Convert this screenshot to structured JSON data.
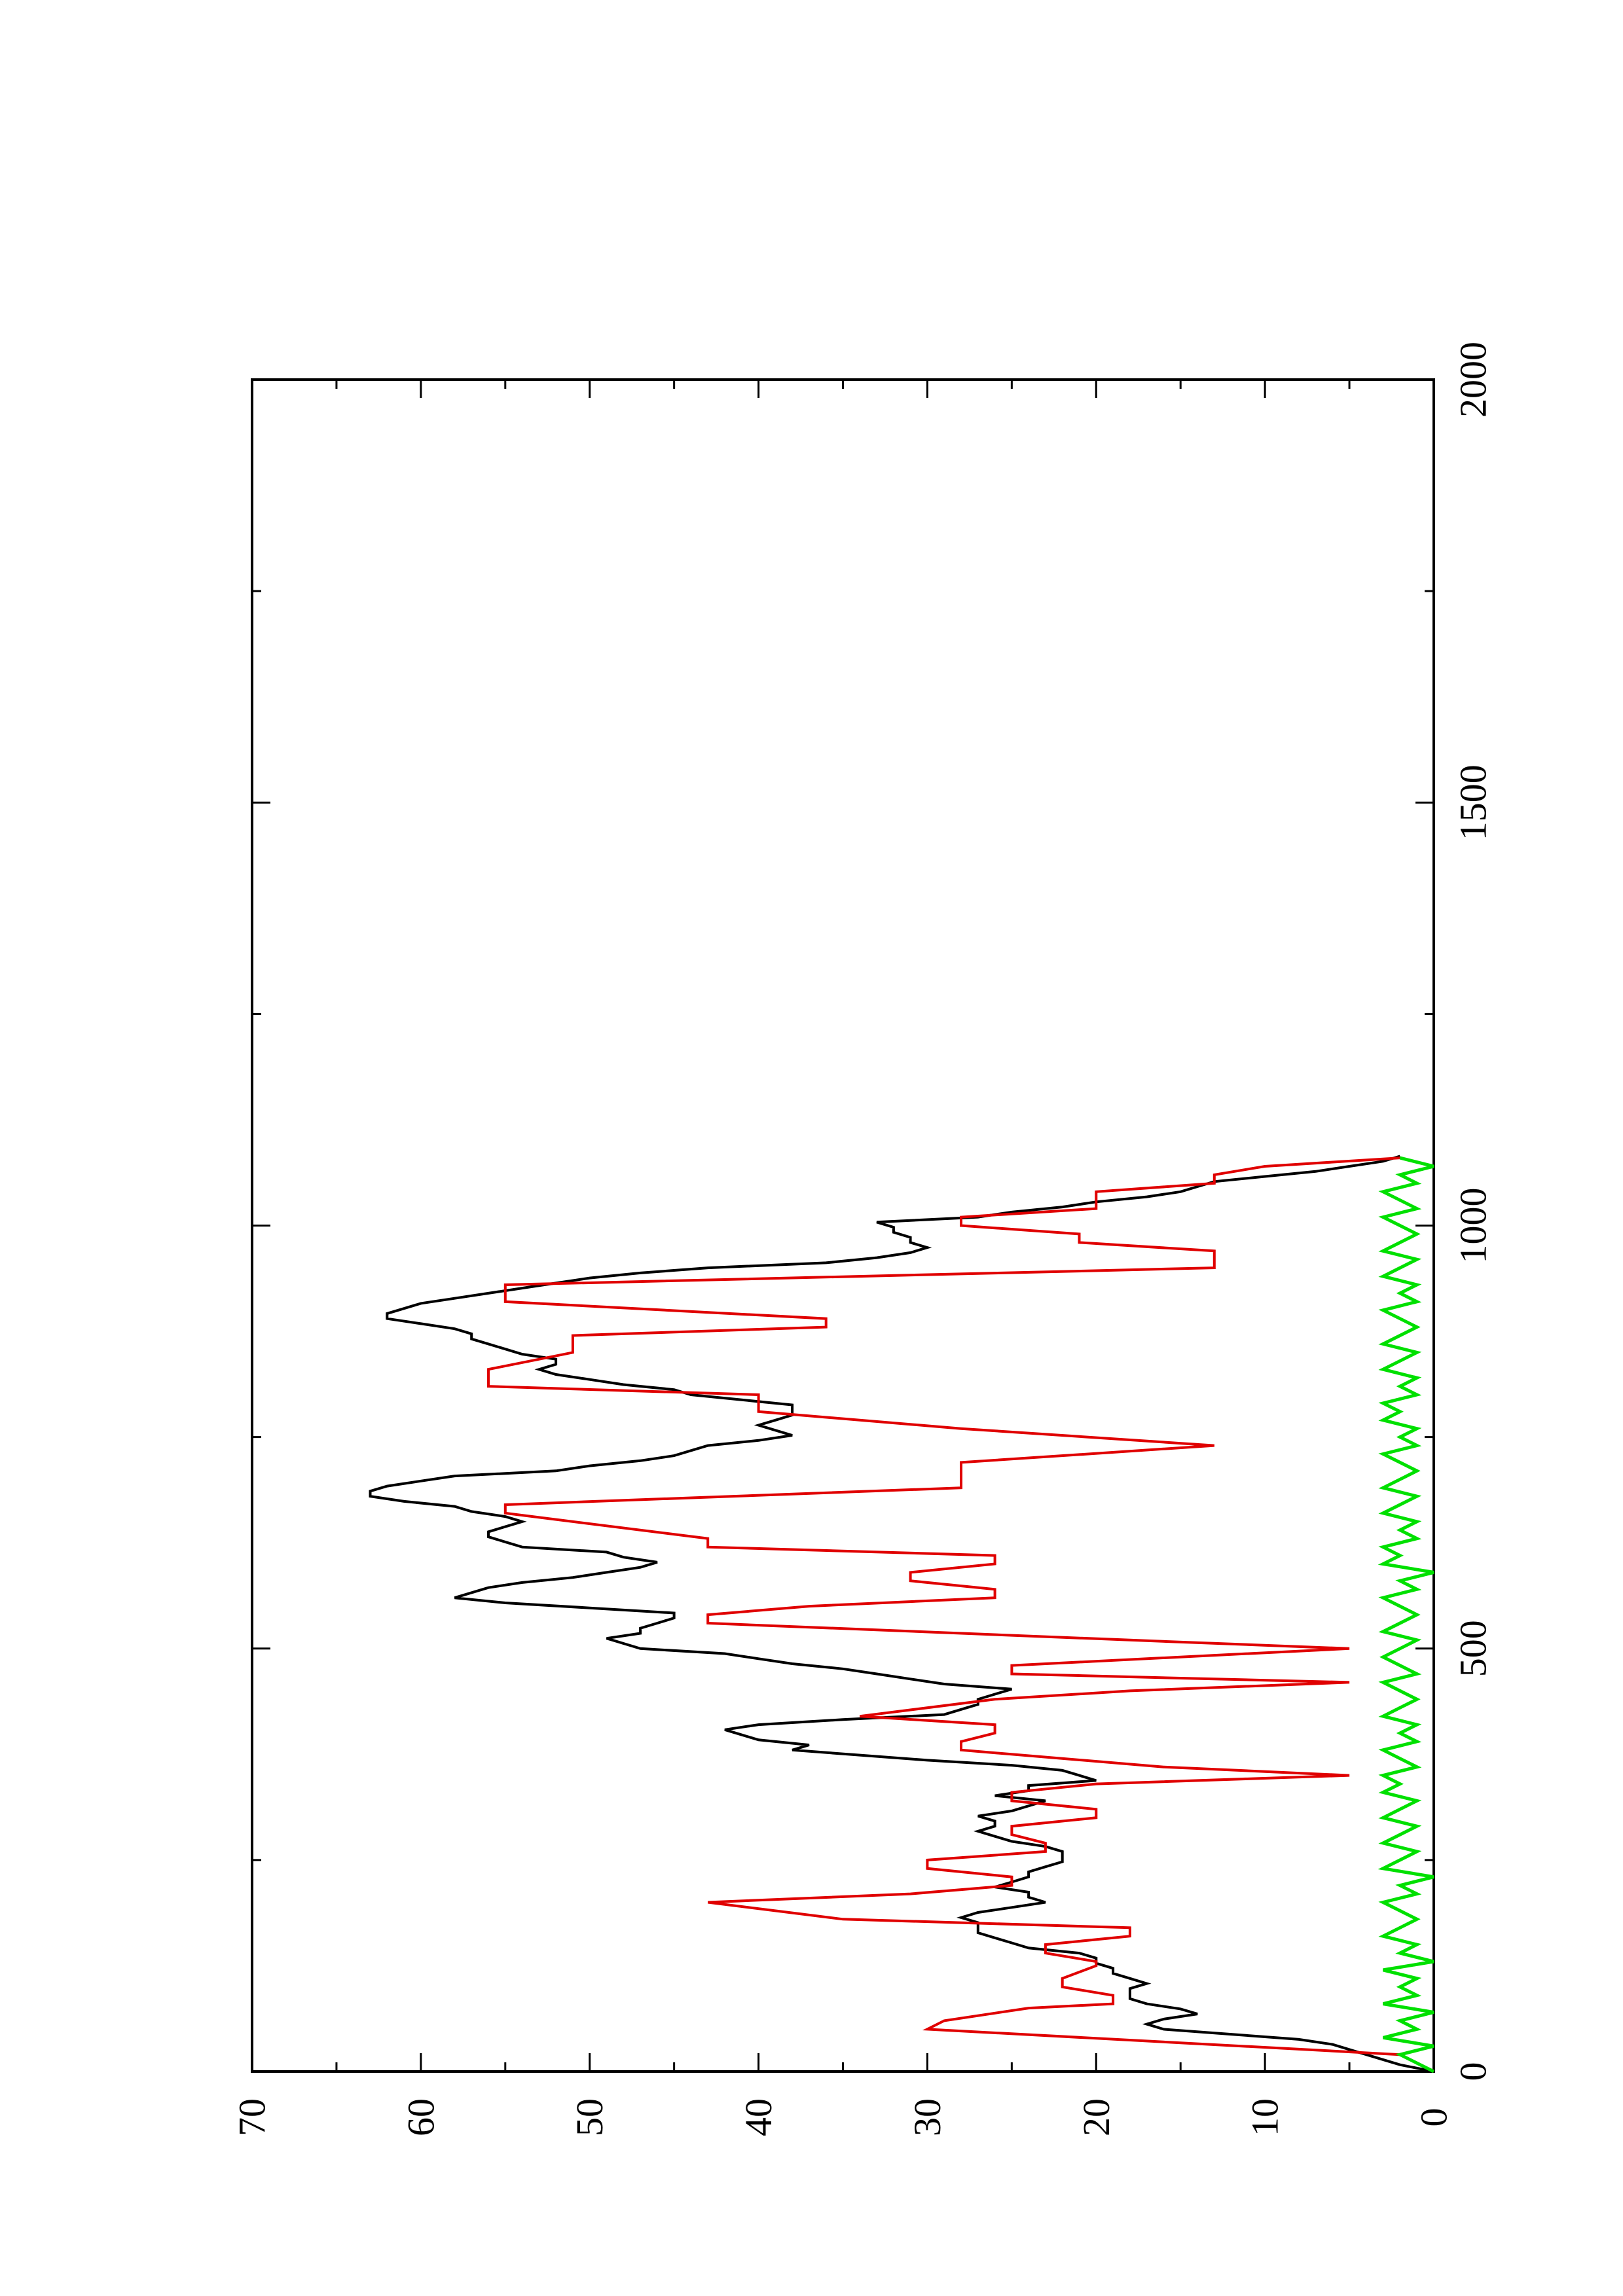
{
  "chart_data": {
    "type": "line",
    "orientation": "rotated-90-ccw",
    "title": "",
    "xlabel": "",
    "ylabel": "",
    "xlim": [
      0,
      2000
    ],
    "ylim": [
      0,
      70
    ],
    "grid": false,
    "legend": "none",
    "x_ticks": [
      "0",
      "500",
      "1000",
      "1500",
      "2000"
    ],
    "y_ticks": [
      "0",
      "10",
      "20",
      "30",
      "40",
      "50",
      "60",
      "70"
    ],
    "x_minor_step": 250,
    "y_minor_step": 5,
    "series": [
      {
        "color": "#000000",
        "x": [
          0,
          8,
          14,
          20,
          26,
          32,
          38,
          44,
          50,
          56,
          62,
          68,
          74,
          80,
          86,
          92,
          98,
          104,
          110,
          116,
          122,
          128,
          134,
          140,
          146,
          152,
          158,
          164,
          170,
          176,
          182,
          188,
          194,
          200,
          206,
          212,
          218,
          224,
          230,
          236,
          242,
          248,
          254,
          260,
          266,
          272,
          278,
          284,
          290,
          296,
          302,
          308,
          314,
          320,
          326,
          332,
          338,
          344,
          350,
          356,
          362,
          368,
          374,
          380,
          386,
          392,
          398,
          404,
          410,
          416,
          422,
          428,
          434,
          440,
          446,
          452,
          458,
          464,
          470,
          476,
          482,
          488,
          494,
          500,
          506,
          512,
          518,
          524,
          530,
          536,
          542,
          548,
          554,
          560,
          566,
          572,
          578,
          584,
          590,
          596,
          602,
          608,
          614,
          620,
          626,
          632,
          638,
          644,
          650,
          656,
          662,
          668,
          674,
          680,
          686,
          692,
          698,
          704,
          710,
          716,
          722,
          728,
          734,
          740,
          746,
          752,
          758,
          764,
          770,
          776,
          782,
          788,
          794,
          800,
          806,
          812,
          818,
          824,
          830,
          836,
          842,
          848,
          854,
          860,
          866,
          872,
          878,
          884,
          890,
          896,
          902,
          908,
          914,
          920,
          926,
          932,
          938,
          944,
          950,
          956,
          962,
          968,
          974,
          980,
          986,
          992,
          998,
          1004,
          1010,
          1016,
          1022,
          1028,
          1034,
          1040,
          1046,
          1052,
          1058,
          1064,
          1070,
          1076,
          1082
        ],
        "y": [
          0,
          2,
          3,
          4,
          5,
          6,
          8,
          12,
          16,
          17,
          16,
          14,
          15,
          17,
          18,
          18,
          18,
          17,
          18,
          19,
          19,
          20,
          20,
          21,
          24,
          25,
          26,
          27,
          27,
          27,
          28,
          27,
          25,
          23,
          24,
          24,
          26,
          25,
          24,
          24,
          23,
          22,
          22,
          22,
          23,
          25,
          26,
          27,
          26,
          26,
          27,
          25,
          24,
          23,
          26,
          24,
          24,
          20,
          21,
          22,
          25,
          30,
          34,
          38,
          37,
          40,
          41,
          42,
          40,
          35,
          29,
          28,
          27,
          27,
          26,
          25,
          29,
          31,
          33,
          35,
          38,
          40,
          42,
          47,
          48,
          49,
          47,
          47,
          46,
          45,
          45,
          50,
          55,
          58,
          57,
          56,
          54,
          51,
          49,
          47,
          46,
          48,
          49,
          54,
          55,
          56,
          56,
          55,
          54,
          55,
          57,
          58,
          61,
          63,
          63,
          62,
          60,
          58,
          52,
          50,
          47,
          45,
          44,
          43,
          40,
          38,
          39,
          40,
          39,
          38,
          38,
          38,
          41,
          44,
          45,
          48,
          50,
          52,
          53,
          52,
          52,
          54,
          55,
          56,
          57,
          57,
          58,
          60,
          62,
          62,
          61,
          60,
          58,
          56,
          54,
          52,
          50,
          47,
          43,
          36,
          33,
          31,
          30,
          31,
          31,
          32,
          32,
          33,
          27,
          25,
          22,
          20,
          17,
          15,
          14,
          13,
          10,
          7,
          5,
          3,
          2
        ]
      },
      {
        "color": "#e00000",
        "x": [
          0,
          20,
          50,
          60,
          75,
          80,
          90,
          100,
          110,
          125,
          130,
          140,
          150,
          160,
          170,
          180,
          200,
          210,
          220,
          230,
          240,
          250,
          260,
          270,
          280,
          290,
          300,
          310,
          320,
          330,
          340,
          350,
          360,
          380,
          390,
          400,
          410,
          420,
          440,
          450,
          460,
          470,
          480,
          500,
          510,
          530,
          540,
          550,
          560,
          570,
          580,
          590,
          600,
          610,
          620,
          630,
          660,
          670,
          690,
          700,
          720,
          740,
          760,
          780,
          800,
          810,
          830,
          850,
          870,
          880,
          890,
          910,
          930,
          950,
          970,
          980,
          990,
          1000,
          1010,
          1020,
          1030,
          1040,
          1050,
          1060,
          1070,
          1080
        ],
        "y": [
          0,
          2,
          30,
          29,
          24,
          19,
          19,
          22,
          22,
          20,
          20,
          23,
          23,
          18,
          18,
          35,
          43,
          31,
          25,
          25,
          30,
          30,
          23,
          23,
          25,
          25,
          20,
          20,
          25,
          25,
          20,
          5,
          16,
          28,
          28,
          26,
          26,
          34,
          26,
          18,
          5,
          25,
          25,
          5,
          18,
          43,
          43,
          37,
          26,
          26,
          31,
          31,
          26,
          26,
          43,
          43,
          55,
          55,
          28,
          28,
          28,
          13,
          28,
          40,
          40,
          56,
          56,
          51,
          51,
          36,
          36,
          55,
          55,
          13,
          13,
          21,
          21,
          28,
          28,
          20,
          20,
          20,
          13,
          13,
          10,
          2
        ]
      },
      {
        "color": "#00e000",
        "x": [
          0,
          10,
          20,
          30,
          40,
          50,
          60,
          70,
          80,
          90,
          100,
          110,
          120,
          130,
          140,
          150,
          160,
          170,
          180,
          190,
          200,
          210,
          220,
          230,
          240,
          250,
          260,
          270,
          280,
          290,
          300,
          310,
          320,
          330,
          340,
          350,
          360,
          370,
          380,
          390,
          400,
          410,
          420,
          430,
          440,
          450,
          460,
          470,
          480,
          490,
          500,
          510,
          520,
          530,
          540,
          550,
          560,
          570,
          580,
          590,
          600,
          610,
          620,
          630,
          640,
          650,
          660,
          670,
          680,
          690,
          700,
          710,
          720,
          730,
          740,
          750,
          760,
          770,
          780,
          790,
          800,
          810,
          820,
          830,
          840,
          850,
          860,
          870,
          880,
          890,
          900,
          910,
          920,
          930,
          940,
          950,
          960,
          970,
          980,
          990,
          1000,
          1010,
          1020,
          1030,
          1040,
          1050,
          1060,
          1070,
          1080
        ],
        "y": [
          0,
          1,
          2,
          0,
          3,
          1,
          2,
          0,
          3,
          1,
          2,
          1,
          3,
          0,
          2,
          1,
          3,
          2,
          1,
          2,
          3,
          1,
          2,
          0,
          3,
          2,
          1,
          3,
          2,
          1,
          3,
          2,
          1,
          3,
          2,
          3,
          1,
          2,
          3,
          1,
          2,
          1,
          3,
          2,
          1,
          2,
          3,
          1,
          2,
          3,
          2,
          1,
          3,
          2,
          1,
          2,
          3,
          1,
          2,
          0,
          3,
          2,
          3,
          1,
          2,
          1,
          3,
          2,
          1,
          3,
          2,
          1,
          2,
          3,
          1,
          2,
          1,
          3,
          2,
          3,
          1,
          2,
          1,
          3,
          2,
          1,
          3,
          2,
          1,
          2,
          3,
          1,
          2,
          1,
          3,
          2,
          1,
          3,
          2,
          1,
          2,
          3,
          1,
          2,
          3,
          1,
          2,
          0,
          2
        ]
      }
    ]
  }
}
